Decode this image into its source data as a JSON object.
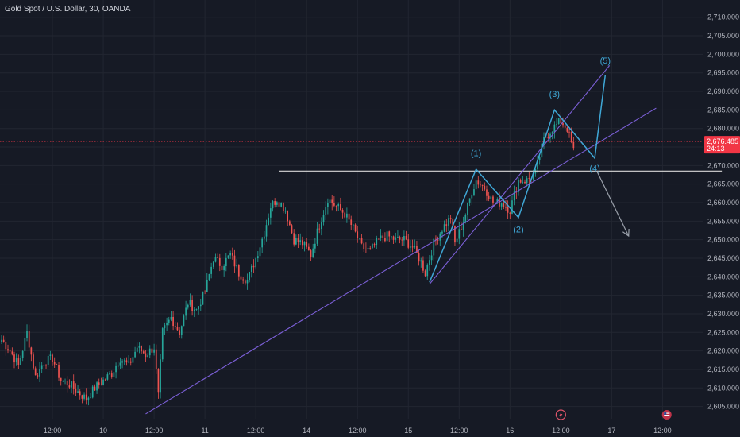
{
  "chart_data": {
    "type": "candlestick",
    "title": "Gold Spot / U.S. Dollar, 30, OANDA",
    "colors": {
      "background": "#161a25",
      "grid": "#222631",
      "up": "#26a69a",
      "down": "#ef5350",
      "channel": "#7b5fd6",
      "wave": "#3fa7d6",
      "level": "#d9d9d9",
      "projection": "#9aa0aa",
      "price_tag": "#f23645"
    },
    "ylim": [
      2602,
      2712
    ],
    "y_ticks": [
      2605,
      2610,
      2615,
      2620,
      2625,
      2630,
      2635,
      2640,
      2645,
      2650,
      2655,
      2660,
      2665,
      2670,
      2675,
      2680,
      2685,
      2690,
      2695,
      2700,
      2705,
      2710
    ],
    "y_tick_labels": [
      "2,605.000",
      "2,610.000",
      "2,615.000",
      "2,620.000",
      "2,625.000",
      "2,630.000",
      "2,635.000",
      "2,640.000",
      "2,645.000",
      "2,650.000",
      "2,655.000",
      "2,660.000",
      "2,665.000",
      "2,670.000",
      "2,675.000",
      "2,680.000",
      "2,685.000",
      "2,690.000",
      "2,695.000",
      "2,700.000",
      "2,705.000",
      "2,710.000"
    ],
    "x_ticks": [
      {
        "t": 24,
        "label": "12:00"
      },
      {
        "t": 48,
        "label": "10"
      },
      {
        "t": 72,
        "label": "12:00"
      },
      {
        "t": 96,
        "label": "11"
      },
      {
        "t": 120,
        "label": "12:00"
      },
      {
        "t": 144,
        "label": "14"
      },
      {
        "t": 168,
        "label": "12:00"
      },
      {
        "t": 192,
        "label": "15"
      },
      {
        "t": 216,
        "label": "12:00"
      },
      {
        "t": 240,
        "label": "16"
      },
      {
        "t": 264,
        "label": "12:00"
      },
      {
        "t": 288,
        "label": "17"
      },
      {
        "t": 312,
        "label": "12:00"
      }
    ],
    "current_price": "2,676.485",
    "countdown": "24:13",
    "current_price_value": 2676.485,
    "anchors": [
      [
        0,
        2623
      ],
      [
        4,
        2620
      ],
      [
        8,
        2616
      ],
      [
        12,
        2625
      ],
      [
        16,
        2613
      ],
      [
        20,
        2617
      ],
      [
        24,
        2618
      ],
      [
        28,
        2612
      ],
      [
        32,
        2611
      ],
      [
        36,
        2609
      ],
      [
        40,
        2607
      ],
      [
        44,
        2610
      ],
      [
        48,
        2612
      ],
      [
        52,
        2614
      ],
      [
        56,
        2618
      ],
      [
        60,
        2616
      ],
      [
        64,
        2621
      ],
      [
        68,
        2619
      ],
      [
        72,
        2621
      ],
      [
        74,
        2608
      ],
      [
        76,
        2625
      ],
      [
        80,
        2629
      ],
      [
        84,
        2625
      ],
      [
        88,
        2633
      ],
      [
        92,
        2631
      ],
      [
        96,
        2636
      ],
      [
        100,
        2645
      ],
      [
        104,
        2643
      ],
      [
        108,
        2646
      ],
      [
        112,
        2641
      ],
      [
        116,
        2639
      ],
      [
        120,
        2645
      ],
      [
        124,
        2652
      ],
      [
        127,
        2659
      ],
      [
        130,
        2661
      ],
      [
        134,
        2658
      ],
      [
        138,
        2650
      ],
      [
        142,
        2649
      ],
      [
        146,
        2646
      ],
      [
        150,
        2654
      ],
      [
        154,
        2661
      ],
      [
        158,
        2659
      ],
      [
        162,
        2657
      ],
      [
        166,
        2653
      ],
      [
        170,
        2648
      ],
      [
        174,
        2647
      ],
      [
        178,
        2650
      ],
      [
        182,
        2651
      ],
      [
        186,
        2650
      ],
      [
        190,
        2650
      ],
      [
        194,
        2648
      ],
      [
        198,
        2644
      ],
      [
        200,
        2641
      ],
      [
        204,
        2649
      ],
      [
        208,
        2653
      ],
      [
        212,
        2656
      ],
      [
        214,
        2649
      ],
      [
        218,
        2655
      ],
      [
        222,
        2663
      ],
      [
        224,
        2666
      ],
      [
        228,
        2664
      ],
      [
        232,
        2660
      ],
      [
        236,
        2660
      ],
      [
        240,
        2658
      ],
      [
        244,
        2666
      ],
      [
        248,
        2666
      ],
      [
        252,
        2668
      ],
      [
        256,
        2677
      ],
      [
        260,
        2680
      ],
      [
        264,
        2682
      ],
      [
        267,
        2680
      ],
      [
        270,
        2674
      ]
    ],
    "candle_count": 271,
    "horizontal_level": {
      "price": 2668.5,
      "t_start": 131,
      "t_end": 340
    },
    "channel": [
      {
        "t1": 68,
        "p1": 2603,
        "t2": 309,
        "p2": 2685.5
      },
      {
        "t1": 202,
        "p1": 2638,
        "t2": 287,
        "p2": 2697
      }
    ],
    "wave_path": [
      {
        "t": 202,
        "p": 2638.5
      },
      {
        "t": 224,
        "p": 2669
      },
      {
        "t": 244,
        "p": 2656
      },
      {
        "t": 261,
        "p": 2685
      },
      {
        "t": 280,
        "p": 2672
      },
      {
        "t": 285,
        "p": 2694.5
      }
    ],
    "wave_labels": [
      {
        "text": "(1)",
        "t": 224,
        "p": 2672.5
      },
      {
        "text": "(2)",
        "t": 244,
        "p": 2652
      },
      {
        "text": "(3)",
        "t": 261,
        "p": 2688.5
      },
      {
        "text": "(4)",
        "t": 280,
        "p": 2668.5
      },
      {
        "text": "(5)",
        "t": 285,
        "p": 2697.5
      }
    ],
    "projection": [
      {
        "t": 281,
        "p": 2668.5
      },
      {
        "t": 296,
        "p": 2651
      }
    ]
  }
}
